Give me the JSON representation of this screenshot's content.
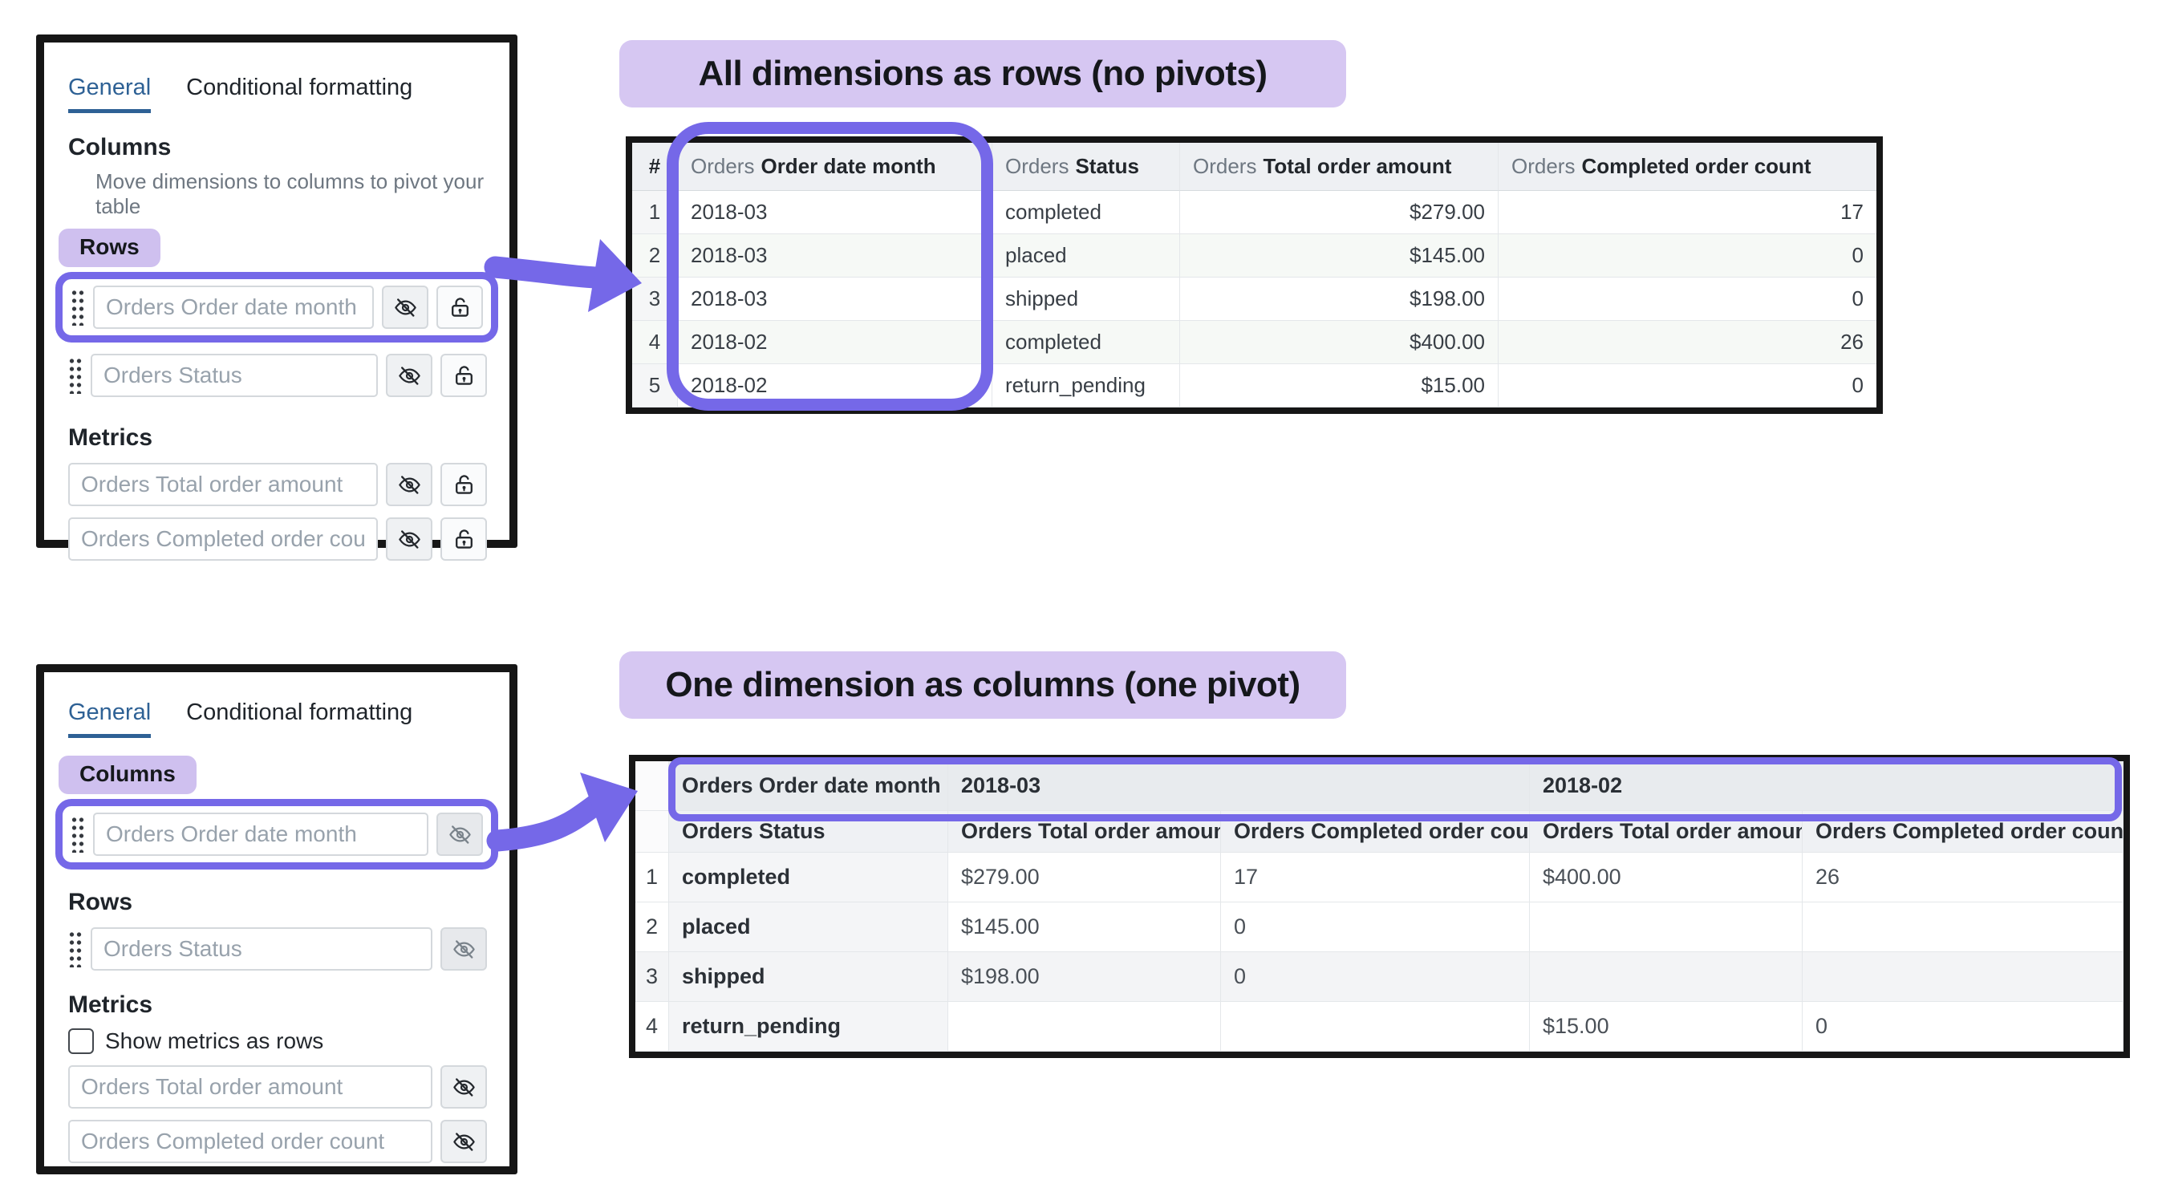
{
  "colors": {
    "accent_purple": "#7568E8",
    "lavender_chip": "#CFC0EF",
    "lavender_title": "#D6C7F2",
    "tab_active_blue": "#2E6195",
    "frame_black": "#161616"
  },
  "panel_top": {
    "tabs": [
      {
        "label": "General"
      },
      {
        "label": "Conditional formatting"
      }
    ],
    "columns_heading": "Columns",
    "columns_hint": "Move dimensions to columns to pivot your table",
    "rows_chip_label": "Rows",
    "dimension_rows": [
      {
        "label": "Orders Order date month"
      },
      {
        "label": "Orders Status"
      }
    ],
    "metrics_heading": "Metrics",
    "metric_rows": [
      {
        "label": "Orders Total order amount"
      },
      {
        "label": "Orders Completed order count"
      }
    ]
  },
  "panel_bottom": {
    "tabs": [
      {
        "label": "General"
      },
      {
        "label": "Conditional formatting"
      }
    ],
    "columns_chip_label": "Columns",
    "column_rows": [
      {
        "label": "Orders Order date month"
      }
    ],
    "rows_heading": "Rows",
    "dimension_rows": [
      {
        "label": "Orders Status"
      }
    ],
    "metrics_heading": "Metrics",
    "show_metrics_as_rows_label": "Show metrics as rows",
    "metric_rows": [
      {
        "label": "Orders Total order amount"
      },
      {
        "label": "Orders Completed order count"
      }
    ]
  },
  "flat_table": {
    "title": "All dimensions as rows (no pivots)",
    "headers": [
      {
        "prefix": "",
        "name": "#"
      },
      {
        "prefix": "Orders",
        "name": "Order date month"
      },
      {
        "prefix": "Orders",
        "name": "Status"
      },
      {
        "prefix": "Orders",
        "name": "Total order amount"
      },
      {
        "prefix": "Orders",
        "name": "Completed order count"
      }
    ],
    "rows": [
      [
        "1",
        "2018-03",
        "completed",
        "$279.00",
        "17"
      ],
      [
        "2",
        "2018-03",
        "placed",
        "$145.00",
        "0"
      ],
      [
        "3",
        "2018-03",
        "shipped",
        "$198.00",
        "0"
      ],
      [
        "4",
        "2018-02",
        "completed",
        "$400.00",
        "26"
      ],
      [
        "5",
        "2018-02",
        "return_pending",
        "$15.00",
        "0"
      ]
    ]
  },
  "pivot_table": {
    "title": "One dimension as columns (one pivot)",
    "pivot_dimension_label": "Orders Order date month",
    "pivot_values": [
      "2018-03",
      "2018-02"
    ],
    "sub_headers": [
      "Orders Status",
      "Orders Total order amount",
      "Orders Completed order count",
      "Orders Total order amount",
      "Orders Completed order count"
    ],
    "rows": [
      [
        "1",
        "completed",
        "$279.00",
        "17",
        "$400.00",
        "26"
      ],
      [
        "2",
        "placed",
        "$145.00",
        "0",
        "",
        ""
      ],
      [
        "3",
        "shipped",
        "$198.00",
        "0",
        "",
        ""
      ],
      [
        "4",
        "return_pending",
        "",
        "",
        "$15.00",
        "0"
      ]
    ]
  }
}
